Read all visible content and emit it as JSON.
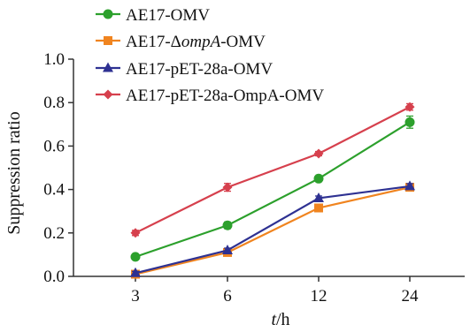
{
  "chart_data": {
    "type": "line",
    "categories": [
      "3",
      "6",
      "12",
      "24"
    ],
    "xlabel_italic": "t",
    "xlabel_unit": "/h",
    "ylabel": "Suppression ratio",
    "ylim": [
      0.0,
      1.0
    ],
    "yticks": [
      "0.0",
      "0.2",
      "0.4",
      "0.6",
      "0.8",
      "1.0"
    ],
    "grid": false,
    "legend_position": "top-left",
    "series": [
      {
        "name_parts": [
          "AE17-OMV"
        ],
        "color": "#2ca02c",
        "marker": "circle",
        "values": [
          0.09,
          0.235,
          0.45,
          0.71
        ],
        "errors": [
          0.012,
          0.015,
          0.012,
          0.028
        ]
      },
      {
        "name_parts": [
          "AE17-Δ",
          "ompA",
          "-OMV"
        ],
        "color": "#f0841f",
        "marker": "square",
        "values": [
          0.01,
          0.11,
          0.315,
          0.41
        ],
        "errors": [
          0.008,
          0.01,
          0.012,
          0.012
        ]
      },
      {
        "name_parts": [
          "AE17-pET-28a-OMV"
        ],
        "color": "#2e3192",
        "marker": "triangle",
        "values": [
          0.015,
          0.12,
          0.36,
          0.415
        ],
        "errors": [
          0.008,
          0.01,
          0.01,
          0.012
        ]
      },
      {
        "name_parts": [
          "AE17-pET-28a-OmpA-OMV"
        ],
        "color": "#d6404d",
        "marker": "diamond",
        "values": [
          0.2,
          0.41,
          0.565,
          0.78
        ],
        "errors": [
          0.012,
          0.018,
          0.01,
          0.015
        ]
      }
    ]
  }
}
